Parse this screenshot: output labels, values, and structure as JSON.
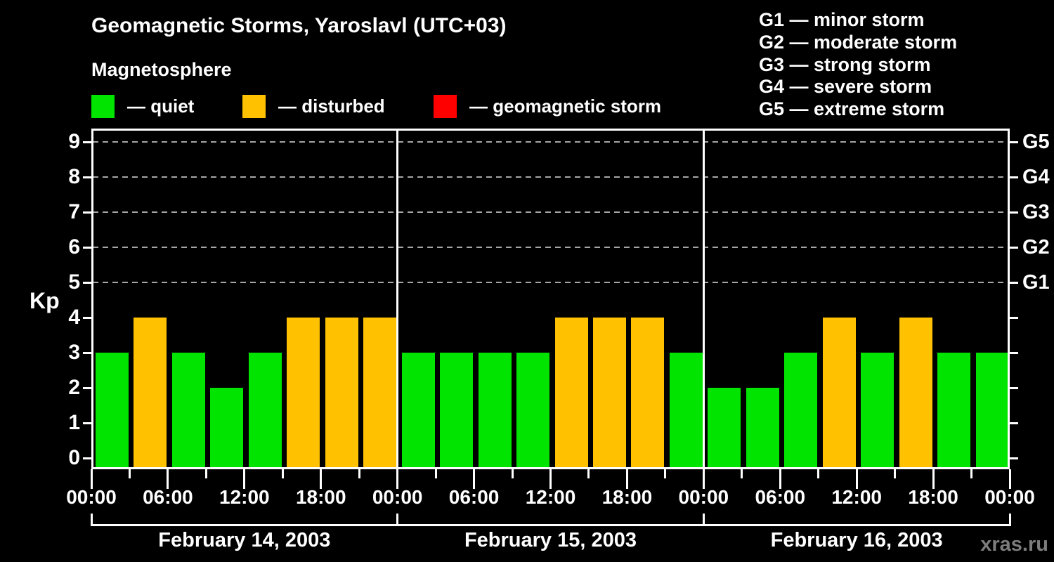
{
  "title": "Geomagnetic Storms, Yaroslavl (UTC+03)",
  "subtitle": "Magnetosphere",
  "legend": {
    "items": [
      {
        "name": "quiet",
        "label": "— quiet",
        "color": "#00e400"
      },
      {
        "name": "disturbed",
        "label": "— disturbed",
        "color": "#ffc100"
      },
      {
        "name": "geomagnetic-storm",
        "label": "— geomagnetic storm",
        "color": "#ff0000"
      }
    ]
  },
  "storm_scale": [
    "G1 — minor storm",
    "G2 — moderate storm",
    "G3 — strong storm",
    "G4 — severe storm",
    "G5 — extreme storm"
  ],
  "watermark": "xras.ru",
  "chart_data": {
    "type": "bar",
    "title": "Geomagnetic Storms, Yaroslavl (UTC+03)",
    "subtitle": "Magnetosphere",
    "ylabel": "Kp",
    "ylim": [
      -0.32,
      9.38
    ],
    "y_ticks": [
      0,
      1,
      2,
      3,
      4,
      5,
      6,
      7,
      8,
      9
    ],
    "grid_levels": [
      5,
      6,
      7,
      8,
      9
    ],
    "grid_on": true,
    "right_axis_labels": [
      {
        "level": 5,
        "label": "G1"
      },
      {
        "level": 6,
        "label": "G2"
      },
      {
        "level": 7,
        "label": "G3"
      },
      {
        "level": 8,
        "label": "G4"
      },
      {
        "level": 9,
        "label": "G5"
      }
    ],
    "time_tick_labels": [
      "00:00",
      "06:00",
      "12:00",
      "18:00"
    ],
    "hours_per_bar": 3,
    "color_rule": "Kp<=3 quiet green, Kp=4 disturbed orange, Kp>=5 storm red",
    "bar_colors": {
      "quiet": "#00e400",
      "disturbed": "#ffc100",
      "storm": "#ff0000"
    },
    "days": [
      {
        "date": "February 14, 2003",
        "kp": [
          3,
          4,
          3,
          2,
          3,
          4,
          4,
          4
        ]
      },
      {
        "date": "February 15, 2003",
        "kp": [
          3,
          3,
          3,
          3,
          4,
          4,
          4,
          3
        ]
      },
      {
        "date": "February 16, 2003",
        "kp": [
          2,
          2,
          3,
          4,
          3,
          4,
          3,
          3
        ]
      }
    ]
  }
}
